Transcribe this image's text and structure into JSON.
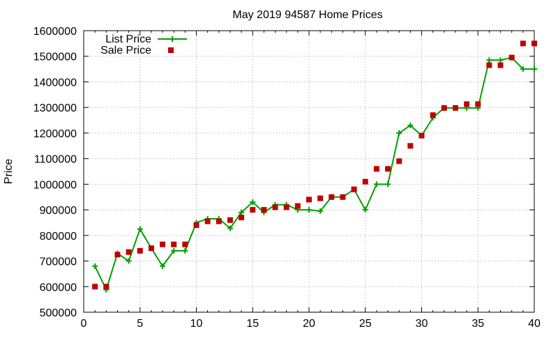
{
  "chart_data": {
    "type": "line",
    "title": "May 2019 94587 Home Prices",
    "xlabel": "",
    "ylabel": "Price",
    "xlim": [
      0,
      40
    ],
    "ylim": [
      500000,
      1600000
    ],
    "xticks": [
      0,
      5,
      10,
      15,
      20,
      25,
      30,
      35,
      40
    ],
    "yticks": [
      500000,
      600000,
      700000,
      800000,
      900000,
      1000000,
      1100000,
      1200000,
      1300000,
      1400000,
      1500000,
      1600000
    ],
    "grid": true,
    "legend_position": "top-left",
    "x": [
      1,
      2,
      3,
      4,
      5,
      6,
      7,
      8,
      9,
      10,
      11,
      12,
      13,
      14,
      15,
      16,
      17,
      18,
      19,
      20,
      21,
      22,
      23,
      24,
      25,
      26,
      27,
      28,
      29,
      30,
      31,
      32,
      33,
      34,
      35,
      36,
      37,
      38,
      39,
      40
    ],
    "series": [
      {
        "name": "List Price",
        "kind": "line-points",
        "color": "#00a000",
        "values": [
          680000,
          588000,
          730000,
          700000,
          825000,
          750000,
          680000,
          740000,
          740000,
          850000,
          865000,
          865000,
          828000,
          890000,
          930000,
          890000,
          920000,
          920000,
          900000,
          900000,
          895000,
          950000,
          950000,
          980000,
          900000,
          1000000,
          1000000,
          1200000,
          1230000,
          1190000,
          1260000,
          1298000,
          1298000,
          1298000,
          1298000,
          1485000,
          1485000,
          1495000,
          1450000,
          1450000
        ]
      },
      {
        "name": "Sale Price",
        "kind": "points",
        "color": "#c00000",
        "values": [
          600000,
          600000,
          725000,
          735000,
          740000,
          750000,
          765000,
          765000,
          765000,
          840000,
          855000,
          855000,
          860000,
          870000,
          900000,
          900000,
          910000,
          910000,
          915000,
          940000,
          945000,
          950000,
          950000,
          980000,
          1010000,
          1060000,
          1060000,
          1090000,
          1150000,
          1190000,
          1270000,
          1298000,
          1298000,
          1313000,
          1313000,
          1465000,
          1465000,
          1495000,
          1550000,
          1550000
        ]
      }
    ]
  }
}
